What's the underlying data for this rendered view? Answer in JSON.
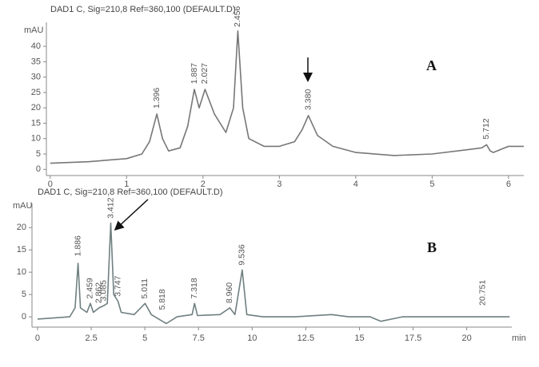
{
  "chart_data": [
    {
      "type": "line",
      "title": "DAD1 C, Sig=210,8 Ref=360,100 (DEFAULT.D)",
      "y_label": "mAU",
      "panel_label": "A",
      "color": "#777777",
      "x": [
        0,
        0.5,
        1.0,
        1.2,
        1.3,
        1.396,
        1.47,
        1.55,
        1.7,
        1.8,
        1.887,
        1.95,
        2.027,
        2.15,
        2.3,
        2.4,
        2.456,
        2.52,
        2.6,
        2.8,
        3.0,
        3.2,
        3.3,
        3.38,
        3.5,
        3.7,
        4.0,
        4.5,
        5.0,
        5.5,
        5.65,
        5.712,
        5.76,
        5.8,
        6.0,
        6.2
      ],
      "values": [
        2,
        2.5,
        3.5,
        5,
        9,
        18,
        10,
        6,
        7,
        14,
        26,
        20,
        26,
        18,
        12,
        20,
        45,
        20,
        10,
        7.5,
        7.5,
        9,
        13,
        17.5,
        11,
        7.5,
        5.5,
        4.5,
        5,
        6.5,
        7,
        8,
        6,
        5.5,
        7.5,
        7.5
      ],
      "xlim": [
        -0.05,
        6.2
      ],
      "ylim": [
        -2,
        47.8
      ],
      "xticks": [
        0,
        1,
        2,
        3,
        4,
        5,
        6
      ],
      "yticks": [
        0,
        5,
        10,
        15,
        20,
        25,
        30,
        35,
        40
      ],
      "annotations": [
        {
          "x": 1.396,
          "y": 19,
          "label": "1.396"
        },
        {
          "x": 1.887,
          "y": 27,
          "label": "1.887"
        },
        {
          "x": 2.027,
          "y": 27,
          "label": "2.027"
        },
        {
          "x": 2.456,
          "y": 45.5,
          "label": "2.456"
        },
        {
          "x": 3.38,
          "y": 18.5,
          "label": "3.380"
        },
        {
          "x": 5.712,
          "y": 9,
          "label": "5.712"
        }
      ]
    },
    {
      "type": "line",
      "title": "DAD1 C, Sig=210,8 Ref=360,100 (DEFAULT.D)",
      "y_label": "mAU",
      "panel_label": "B",
      "x_label": "min",
      "color": "#6f7f80",
      "x": [
        0,
        1.5,
        1.75,
        1.886,
        2.0,
        2.3,
        2.459,
        2.6,
        2.862,
        3.085,
        3.25,
        3.412,
        3.55,
        3.747,
        3.9,
        4.5,
        5.011,
        5.3,
        5.818,
        6.0,
        6.5,
        7.2,
        7.318,
        7.45,
        8.5,
        8.96,
        9.2,
        9.536,
        9.75,
        10.5,
        12,
        13.7,
        14.5,
        15.5,
        16,
        17,
        20,
        20.751,
        21.5,
        22
      ],
      "values": [
        -0.5,
        0,
        2,
        12,
        2,
        1,
        3,
        1,
        2,
        2.5,
        3,
        21,
        5,
        3.5,
        1,
        0.5,
        3,
        0.5,
        -1,
        -1.5,
        0,
        0.5,
        3,
        0.3,
        0.5,
        2,
        0.5,
        10.5,
        0.5,
        0,
        0,
        0.5,
        0,
        0,
        -1,
        0,
        0,
        0,
        0,
        0
      ],
      "xlim": [
        -0.26,
        22.1
      ],
      "ylim": [
        -2.3,
        25.4
      ],
      "xticks": [
        0,
        2.5,
        5,
        7.5,
        10,
        12.5,
        15,
        17.5,
        20
      ],
      "yticks": [
        0,
        5,
        10,
        15,
        20
      ],
      "annotations": [
        {
          "x": 1.886,
          "y": 13,
          "label": "1.886"
        },
        {
          "x": 2.459,
          "y": 3.5,
          "label": "2.459"
        },
        {
          "x": 2.862,
          "y": 2.5,
          "label": "2.862"
        },
        {
          "x": 3.085,
          "y": 3,
          "label": "3.085"
        },
        {
          "x": 3.412,
          "y": 21.5,
          "label": "3.412"
        },
        {
          "x": 3.747,
          "y": 4,
          "label": "3.747"
        },
        {
          "x": 5.011,
          "y": 3.5,
          "label": "5.011"
        },
        {
          "x": 5.818,
          "y": 1,
          "label": "5.818"
        },
        {
          "x": 7.318,
          "y": 3.5,
          "label": "7.318"
        },
        {
          "x": 8.96,
          "y": 2.5,
          "label": "8.960"
        },
        {
          "x": 9.536,
          "y": 11,
          "label": "9.536"
        },
        {
          "x": 20.751,
          "y": 2,
          "label": "20.751"
        }
      ]
    }
  ]
}
